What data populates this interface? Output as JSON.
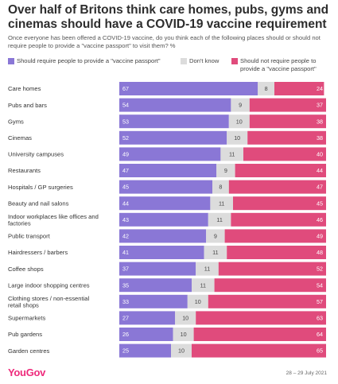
{
  "title": "Over half of Britons think care homes, pubs, gyms and cinemas should have a COVID-19 vaccine requirement",
  "subtitle": "Once everyone has been offered a COVID-19 vaccine, do you think each of the following places should or should not require people to provide a \"vaccine passport\" to visit them? %",
  "footer": {
    "logo": "YouGov",
    "date": "28 – 29 July 2021"
  },
  "colors": {
    "require": "#8a77d6",
    "dont_know": "#dcdcdc",
    "not_require": "#e04b7c"
  },
  "chart_data": {
    "type": "bar",
    "orientation": "horizontal",
    "stacked": true,
    "xlim": [
      0,
      100
    ],
    "legend_position": "top",
    "categories": [
      "Care homes",
      "Pubs and bars",
      "Gyms",
      "Cinemas",
      "University campuses",
      "Restaurants",
      "Hospitals / GP surgeries",
      "Beauty and nail salons",
      "Indoor workplaces like offices and factories",
      "Public transport",
      "Hairdressers / barbers",
      "Coffee shops",
      "Large indoor shopping centres",
      "Clothing stores / non-essential retail shops",
      "Supermarkets",
      "Pub gardens",
      "Garden centres"
    ],
    "series": [
      {
        "name": "Should require people to provide a \"vaccine passport\"",
        "values": [
          67,
          54,
          53,
          52,
          49,
          47,
          45,
          44,
          43,
          42,
          41,
          37,
          35,
          33,
          27,
          26,
          25
        ]
      },
      {
        "name": "Don't know",
        "values": [
          8,
          9,
          10,
          10,
          11,
          9,
          8,
          11,
          11,
          9,
          11,
          11,
          11,
          10,
          10,
          10,
          10
        ]
      },
      {
        "name": "Should not require people to provide a \"vaccine passport\"",
        "values": [
          24,
          37,
          38,
          38,
          40,
          44,
          47,
          45,
          46,
          49,
          48,
          52,
          54,
          57,
          63,
          64,
          65
        ]
      }
    ]
  }
}
